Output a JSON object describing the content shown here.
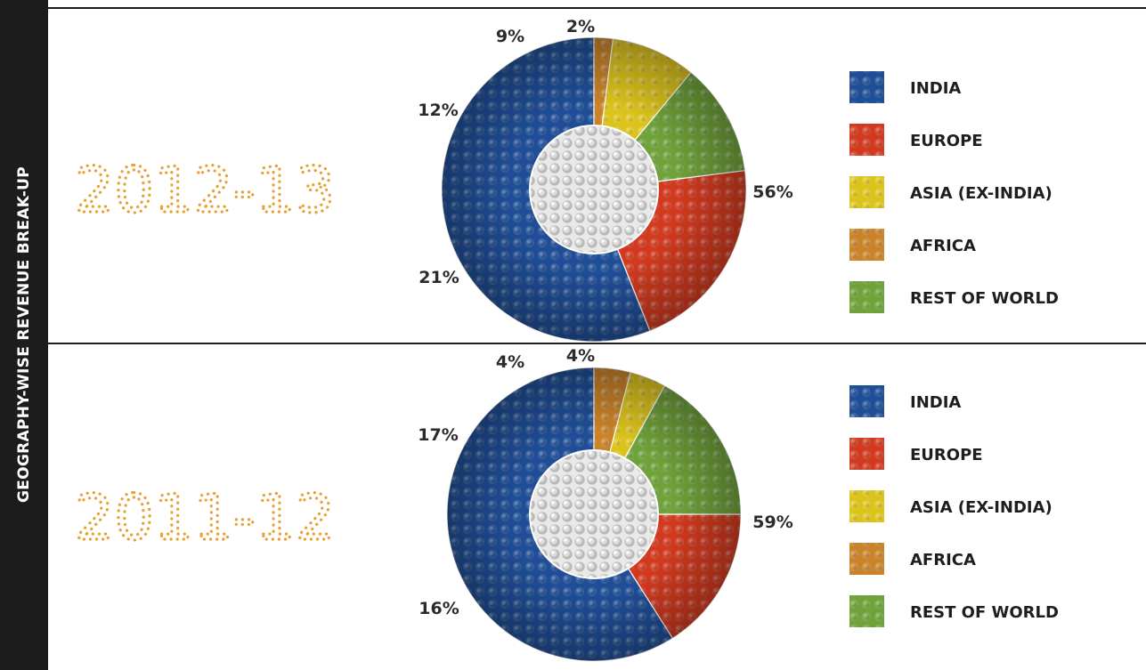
{
  "side_title": "GEOGRAPHY-WISE REVENUE BREAK-UP",
  "year_color": "#e8a133",
  "chart_data": [
    {
      "type": "pie",
      "donut": true,
      "title": "2012-13",
      "categories": [
        "INDIA",
        "EUROPE",
        "ASIA (EX-INDIA)",
        "AFRICA",
        "REST OF WORLD"
      ],
      "slices": [
        {
          "name": "INDIA",
          "value": 56,
          "label": "56%",
          "color": "#1f4e96"
        },
        {
          "name": "EUROPE",
          "value": 21,
          "label": "21%",
          "color": "#d23a1f"
        },
        {
          "name": "REST OF WORLD",
          "value": 12,
          "label": "12%",
          "color": "#6fa23a"
        },
        {
          "name": "ASIA (EX-INDIA)",
          "value": 9,
          "label": "9%",
          "color": "#dcc31c"
        },
        {
          "name": "AFRICA",
          "value": 2,
          "label": "2%",
          "color": "#c9832a"
        }
      ],
      "legend": [
        {
          "label": "INDIA",
          "color": "#1f4e96"
        },
        {
          "label": "EUROPE",
          "color": "#d23a1f"
        },
        {
          "label": "ASIA (EX-INDIA)",
          "color": "#dcc31c"
        },
        {
          "label": "AFRICA",
          "color": "#c9832a"
        },
        {
          "label": "REST OF WORLD",
          "color": "#6fa23a"
        }
      ],
      "legend_position": "right"
    },
    {
      "type": "pie",
      "donut": true,
      "title": "2011-12",
      "categories": [
        "INDIA",
        "EUROPE",
        "ASIA (EX-INDIA)",
        "AFRICA",
        "REST OF WORLD"
      ],
      "slices": [
        {
          "name": "INDIA",
          "value": 59,
          "label": "59%",
          "color": "#1f4e96"
        },
        {
          "name": "EUROPE",
          "value": 16,
          "label": "16%",
          "color": "#d23a1f"
        },
        {
          "name": "REST OF WORLD",
          "value": 17,
          "label": "17%",
          "color": "#6fa23a"
        },
        {
          "name": "ASIA (EX-INDIA)",
          "value": 4,
          "label": "4%",
          "color": "#dcc31c"
        },
        {
          "name": "AFRICA",
          "value": 4,
          "label": "4%",
          "color": "#c9832a"
        }
      ],
      "legend": [
        {
          "label": "INDIA",
          "color": "#1f4e96"
        },
        {
          "label": "EUROPE",
          "color": "#d23a1f"
        },
        {
          "label": "ASIA (EX-INDIA)",
          "color": "#dcc31c"
        },
        {
          "label": "AFRICA",
          "color": "#c9832a"
        },
        {
          "label": "REST OF WORLD",
          "color": "#6fa23a"
        }
      ],
      "legend_position": "right"
    }
  ]
}
